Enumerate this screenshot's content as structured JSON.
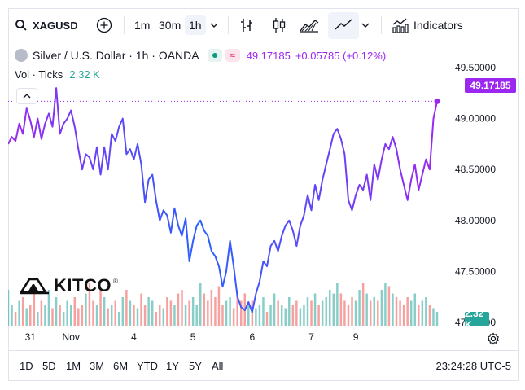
{
  "toolbar": {
    "symbol": "XAGUSD",
    "intervals": [
      "1m",
      "30m",
      "1h"
    ],
    "active_interval": "1h",
    "indicators_label": "Indicators"
  },
  "legend": {
    "title": "Silver / U.S. Dollar · 1h · OANDA",
    "price": "49.17185",
    "change": "+0.05785 (+0.12%)",
    "vol_label": "Vol · Ticks",
    "vol_value": "2.32 K"
  },
  "logo_text": "KITCO",
  "price_tag": "49.17185",
  "volume_tag": "2.32 K",
  "bottom": {
    "ranges": [
      "1D",
      "5D",
      "1M",
      "3M",
      "6M",
      "YTD",
      "1Y",
      "5Y",
      "All"
    ],
    "clock": "23:24:28 UTC-5"
  },
  "colors": {
    "price_line_start": "#2962ff",
    "price_line_end": "#9c27f0",
    "last_price_tag": "#9c27f0",
    "volume_up": "#26a69a",
    "volume_down": "#ef5350",
    "volume_tag": "#26a69a"
  },
  "chart_data": {
    "type": "line",
    "title": "Silver / U.S. Dollar · 1h · OANDA",
    "y_ticks": [
      "49.50000",
      "49.00000",
      "48.50000",
      "48.00000",
      "47.50000",
      "47.00000"
    ],
    "x_ticks": [
      "31",
      "Nov",
      "4",
      "5",
      "6",
      "7",
      "9"
    ],
    "ylim": [
      46.96,
      49.74
    ],
    "x_tick_index": [
      6,
      17,
      34,
      50,
      66,
      82,
      94
    ],
    "series": [
      {
        "values": [
          48.75,
          48.82,
          48.78,
          48.95,
          48.85,
          49.1,
          48.98,
          48.82,
          49.0,
          48.8,
          48.95,
          49.05,
          48.92,
          49.3,
          48.85,
          48.95,
          49.0,
          49.08,
          48.92,
          48.7,
          48.5,
          48.65,
          48.62,
          48.5,
          48.72,
          48.45,
          48.72,
          48.5,
          48.85,
          48.78,
          48.92,
          49.0,
          48.65,
          48.7,
          48.6,
          48.75,
          48.55,
          48.18,
          48.4,
          48.45,
          48.2,
          48.0,
          48.1,
          48.05,
          47.88,
          48.12,
          47.95,
          47.85,
          48.02,
          47.6,
          47.8,
          47.95,
          48.0,
          47.9,
          47.85,
          47.7,
          47.65,
          47.55,
          47.35,
          47.5,
          47.8,
          47.55,
          47.25,
          47.15,
          47.12,
          47.2,
          47.1,
          47.28,
          47.4,
          47.6,
          47.55,
          47.75,
          47.8,
          47.7,
          47.85,
          47.95,
          48.0,
          47.9,
          47.75,
          47.95,
          48.05,
          48.25,
          48.1,
          48.35,
          48.2,
          48.4,
          48.55,
          48.7,
          48.85,
          48.9,
          48.8,
          48.65,
          48.2,
          48.1,
          48.25,
          48.35,
          48.3,
          48.45,
          48.2,
          48.55,
          48.4,
          48.6,
          48.75,
          48.7,
          48.82,
          48.7,
          48.5,
          48.35,
          48.2,
          48.4,
          48.55,
          48.3,
          48.45,
          48.6,
          48.5,
          49.0,
          49.17
        ]
      }
    ],
    "volume": [
      0.5,
      0.3,
      0.2,
      0.35,
      0.4,
      0.25,
      0.3,
      0.45,
      0.2,
      0.35,
      0.3,
      0.5,
      0.25,
      0.4,
      0.3,
      0.2,
      0.35,
      0.3,
      0.4,
      0.25,
      0.3,
      0.45,
      0.6,
      0.35,
      0.3,
      0.5,
      0.4,
      0.25,
      0.3,
      0.35,
      0.2,
      0.4,
      0.5,
      0.35,
      0.3,
      0.25,
      0.45,
      0.3,
      0.4,
      0.35,
      0.2,
      0.3,
      0.25,
      0.4,
      0.35,
      0.3,
      0.45,
      0.5,
      0.3,
      0.35,
      0.4,
      0.3,
      0.6,
      0.45,
      0.35,
      0.5,
      0.4,
      0.55,
      0.3,
      0.35,
      0.4,
      0.25,
      0.5,
      0.35,
      0.45,
      0.3,
      0.35,
      0.25,
      0.3,
      0.4,
      0.2,
      0.3,
      0.45,
      0.35,
      0.3,
      0.25,
      0.4,
      0.3,
      0.35,
      0.25,
      0.3,
      0.4,
      0.35,
      0.45,
      0.3,
      0.35,
      0.4,
      0.5,
      0.45,
      0.6,
      0.45,
      0.35,
      0.3,
      0.4,
      0.35,
      0.5,
      0.6,
      0.45,
      0.35,
      0.4,
      0.35,
      0.5,
      0.6,
      0.55,
      0.45,
      0.4,
      0.35,
      0.3,
      0.4,
      0.35,
      0.45,
      0.3,
      0.35,
      0.4,
      0.3,
      0.25,
      0.2
    ]
  }
}
